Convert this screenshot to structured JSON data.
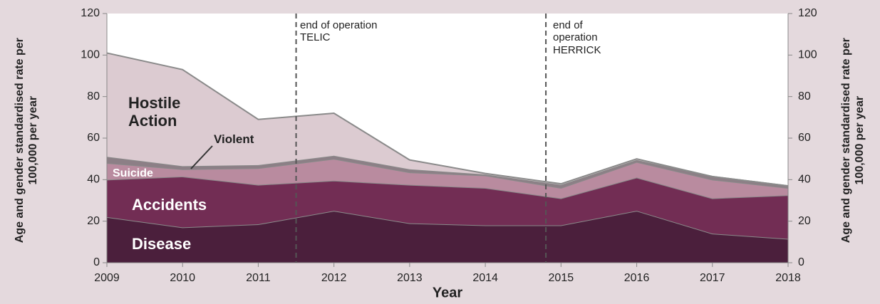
{
  "chart_data": {
    "type": "stacked_area",
    "x": [
      2009,
      2010,
      2011,
      2012,
      2013,
      2014,
      2015,
      2016,
      2017,
      2018
    ],
    "series": [
      {
        "name": "Disease",
        "color": "#4b1f3c",
        "values": [
          22,
          17,
          18.5,
          25,
          19,
          18,
          18,
          25,
          14,
          11.5
        ]
      },
      {
        "name": "Accidents",
        "color": "#722d54",
        "values": [
          18,
          24.5,
          19,
          14.5,
          18.5,
          18,
          13,
          16,
          17,
          21
        ]
      },
      {
        "name": "Suicide",
        "color": "#b98b9f",
        "values": [
          8,
          3.5,
          8,
          10.5,
          6,
          6,
          5,
          7.5,
          9,
          3.5
        ]
      },
      {
        "name": "Violent",
        "color": "#8c7f86",
        "values": [
          3,
          1.5,
          1.5,
          1.5,
          1.5,
          0.5,
          1.5,
          1,
          1.5,
          1
        ]
      },
      {
        "name": "Hostile Action",
        "color": "#dccbd1",
        "values": [
          50,
          46.5,
          22,
          20.5,
          4.5,
          0.5,
          0.5,
          0.5,
          0,
          0
        ]
      }
    ],
    "xlabel": "Year",
    "ylabel": "Age and gender standardised rate per 100,000 per year",
    "y2label": "Age and gender standardised rate per 100,000 per year",
    "xlim": [
      2009,
      2018
    ],
    "xticks": [
      2009,
      2010,
      2011,
      2012,
      2013,
      2014,
      2015,
      2016,
      2017,
      2018
    ],
    "ylim": [
      0,
      120
    ],
    "yticks": [
      0,
      20,
      40,
      60,
      80,
      100,
      120
    ],
    "y2lim": [
      0,
      120
    ],
    "y2ticks": [
      0,
      20,
      40,
      60,
      80,
      100,
      120
    ],
    "annotations": [
      {
        "x": 2011.5,
        "text": "end of operation TELIC"
      },
      {
        "x": 2014.8,
        "text": "end of operation HERRICK"
      }
    ]
  }
}
